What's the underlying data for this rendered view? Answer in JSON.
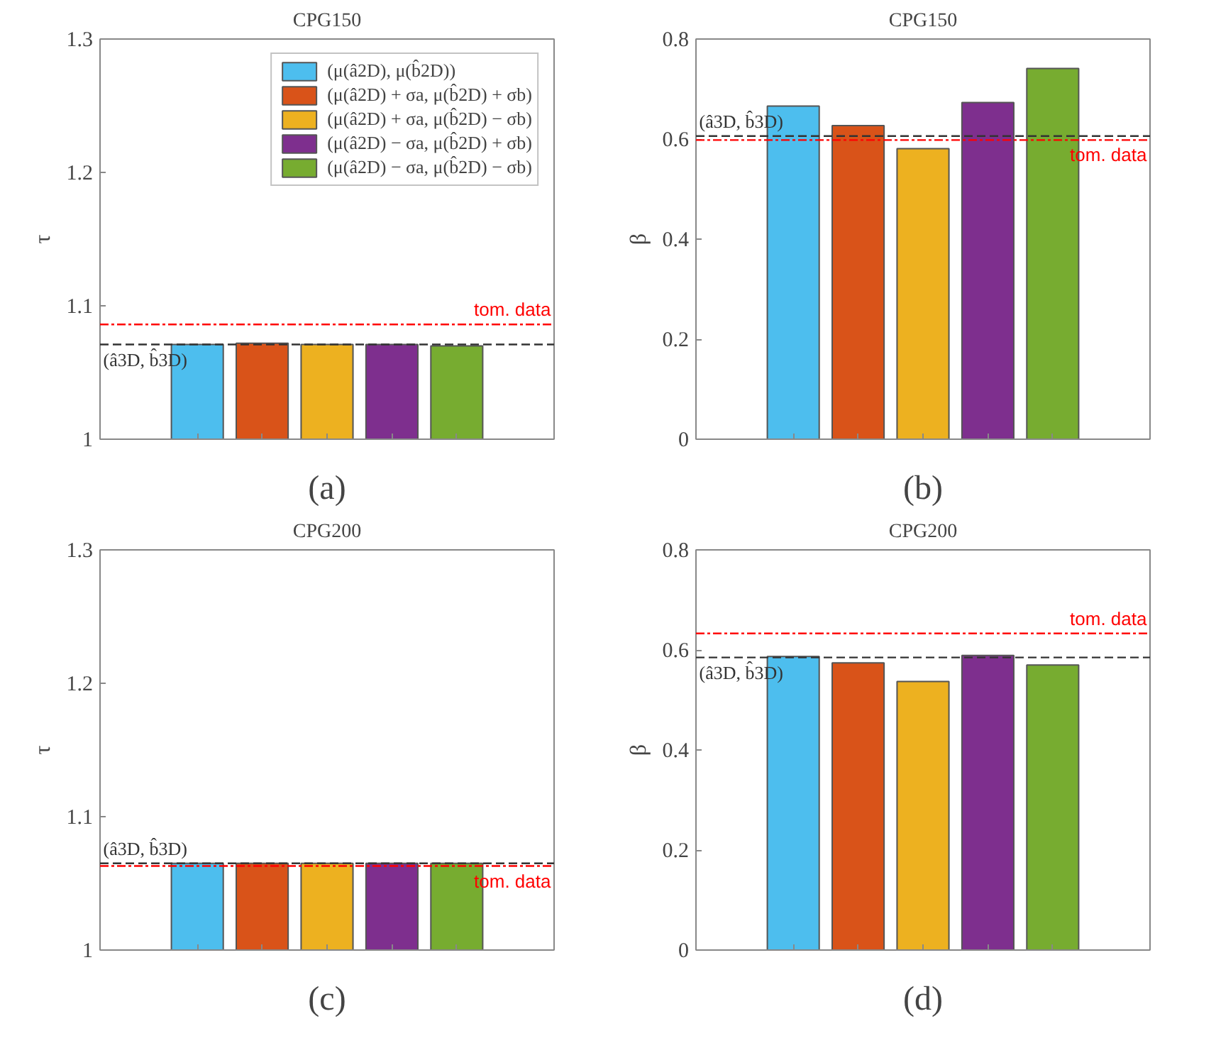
{
  "chart_data": [
    {
      "type": "bar",
      "title": "CPG150",
      "xlabel": "(a)",
      "ylabel": "τ",
      "categories": [
        null,
        null,
        null,
        null,
        null,
        null,
        null
      ],
      "ylim": [
        1,
        1.3
      ],
      "yticks": [
        1,
        1.1,
        1.2,
        1.3
      ],
      "tick_labels": "y",
      "legend": "top right",
      "stacked": true,
      "series": [
        {
          "name": "(μ(â2D), μ(b̂2D))",
          "color": "#4dbeee",
          "values": [
            null,
            1.071,
            null,
            null,
            null,
            null,
            null
          ]
        },
        {
          "name": "(μ(â2D) + σa, μ(b̂2D) + σb)",
          "color": "#d95319",
          "values": [
            null,
            null,
            1.072,
            null,
            null,
            null,
            null
          ]
        },
        {
          "name": "(μ(â2D) + σa, μ(b̂2D) − σb)",
          "color": "#edb120",
          "values": [
            null,
            null,
            null,
            1.071,
            null,
            null,
            null
          ]
        },
        {
          "name": "(μ(â2D) − σa, μ(b̂2D) + σb)",
          "color": "#7e2f8e",
          "values": [
            null,
            null,
            null,
            null,
            1.071,
            null,
            null
          ]
        },
        {
          "name": "(μ(â2D) − σa, μ(b̂2D) − σb)",
          "color": "#77ac30",
          "values": [
            null,
            null,
            null,
            null,
            null,
            1.07,
            null
          ]
        }
      ],
      "ref_lines": [
        {
          "axis": "y",
          "value": 1.071,
          "label": "(â3D, b̂3D)",
          "color": "#333333",
          "line_style": "dashed"
        },
        {
          "axis": "y",
          "value": 1.086,
          "label": "tom. data",
          "color": "#ff0000",
          "line_style": "dashdot"
        }
      ]
    },
    {
      "type": "bar",
      "title": "CPG150",
      "xlabel": "(b)",
      "ylabel": "β",
      "categories": [
        null,
        null,
        null,
        null,
        null,
        null,
        null
      ],
      "ylim": [
        0,
        0.8
      ],
      "yticks": [
        0,
        0.2,
        0.4,
        0.6,
        0.8
      ],
      "tick_labels": "y",
      "stacked": true,
      "series": [
        {
          "color": "#4dbeee",
          "values": [
            null,
            0.666,
            null,
            null,
            null,
            null,
            null
          ]
        },
        {
          "color": "#d95319",
          "values": [
            null,
            null,
            0.627,
            null,
            null,
            null,
            null
          ]
        },
        {
          "color": "#edb120",
          "values": [
            null,
            null,
            null,
            0.581,
            null,
            null,
            null
          ]
        },
        {
          "color": "#7e2f8e",
          "values": [
            null,
            null,
            null,
            null,
            0.673,
            null,
            null
          ]
        },
        {
          "color": "#77ac30",
          "values": [
            null,
            null,
            null,
            null,
            null,
            0.741,
            null
          ]
        }
      ],
      "ref_lines": [
        {
          "axis": "y",
          "value": 0.606,
          "label": "(â3D, b̂3D)",
          "color": "#333333",
          "line_style": "dashed"
        },
        {
          "axis": "y",
          "value": 0.598,
          "label": "tom. data",
          "color": "#ff0000",
          "line_style": "dashdot"
        }
      ]
    },
    {
      "type": "bar",
      "title": "CPG200",
      "xlabel": "(c)",
      "ylabel": "τ",
      "categories": [
        null,
        null,
        null,
        null,
        null,
        null,
        null
      ],
      "ylim": [
        1,
        1.3
      ],
      "yticks": [
        1,
        1.1,
        1.2,
        1.3
      ],
      "tick_labels": "y",
      "stacked": true,
      "series": [
        {
          "color": "#4dbeee",
          "values": [
            null,
            1.065,
            null,
            null,
            null,
            null,
            null
          ]
        },
        {
          "color": "#d95319",
          "values": [
            null,
            null,
            1.065,
            null,
            null,
            null,
            null
          ]
        },
        {
          "color": "#edb120",
          "values": [
            null,
            null,
            null,
            1.065,
            null,
            null,
            null
          ]
        },
        {
          "color": "#7e2f8e",
          "values": [
            null,
            null,
            null,
            null,
            1.065,
            null,
            null
          ]
        },
        {
          "color": "#77ac30",
          "values": [
            null,
            null,
            null,
            null,
            null,
            1.065,
            null
          ]
        }
      ],
      "ref_lines": [
        {
          "axis": "y",
          "value": 1.065,
          "label": "(â3D, b̂3D)",
          "color": "#333333",
          "line_style": "dashed"
        },
        {
          "axis": "y",
          "value": 1.063,
          "label": "tom. data",
          "color": "#ff0000",
          "line_style": "dashdot"
        }
      ]
    },
    {
      "type": "bar",
      "title": "CPG200",
      "xlabel": "(d)",
      "ylabel": "β",
      "categories": [
        null,
        null,
        null,
        null,
        null,
        null,
        null
      ],
      "ylim": [
        0,
        0.8
      ],
      "yticks": [
        0,
        0.2,
        0.4,
        0.6,
        0.8
      ],
      "tick_labels": "y",
      "stacked": true,
      "series": [
        {
          "color": "#4dbeee",
          "values": [
            null,
            0.587,
            null,
            null,
            null,
            null,
            null
          ]
        },
        {
          "color": "#d95319",
          "values": [
            null,
            null,
            0.574,
            null,
            null,
            null,
            null
          ]
        },
        {
          "color": "#edb120",
          "values": [
            null,
            null,
            null,
            0.537,
            null,
            null,
            null
          ]
        },
        {
          "color": "#7e2f8e",
          "values": [
            null,
            null,
            null,
            null,
            0.589,
            null,
            null
          ]
        },
        {
          "color": "#77ac30",
          "values": [
            null,
            null,
            null,
            null,
            null,
            0.57,
            null
          ]
        }
      ],
      "ref_lines": [
        {
          "axis": "y",
          "value": 0.585,
          "label": "(â3D, b̂3D)",
          "color": "#333333",
          "line_style": "dashed"
        },
        {
          "axis": "y",
          "value": 0.633,
          "label": "tom. data",
          "color": "#ff0000",
          "line_style": "dashdot"
        }
      ]
    }
  ]
}
